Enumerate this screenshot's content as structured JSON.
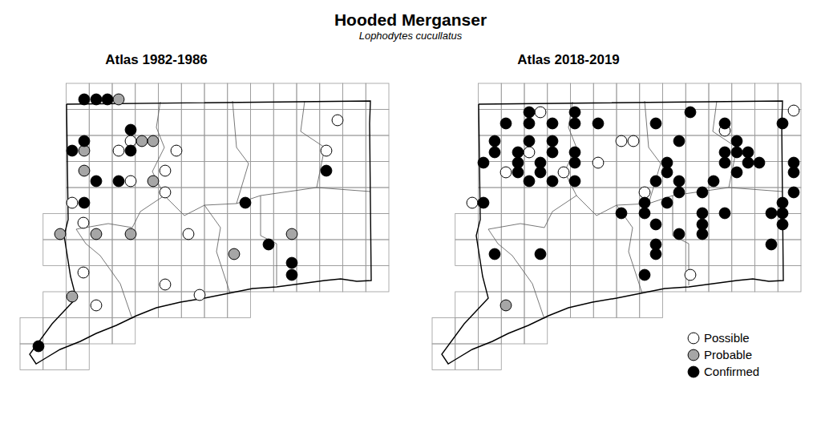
{
  "chart_data": {
    "type": "scatter",
    "title": "Hooded Merganser",
    "subtitle": "Lophodytes cucullatus",
    "xlim": [
      0,
      460
    ],
    "ylim": [
      0,
      390
    ],
    "tick_labels": false,
    "panels": [
      {
        "title": "Atlas 1982-1986",
        "series": [
          {
            "name": "Possible",
            "color": "#ffffff",
            "marker": "circle",
            "x": [
              138,
              123,
              195,
              181,
              138,
              181,
              65,
              79,
              210,
              79,
              95,
              181,
              224,
              396,
              382
            ],
            "y": [
              72,
              84,
              84,
              109,
              122,
              136,
              149,
              174,
              188,
              236,
              277,
              251,
              264,
              46,
              84
            ]
          },
          {
            "name": "Probable",
            "color": "#a6a6a6",
            "marker": "circle",
            "x": [
              123,
              152,
              166,
              80,
              80,
              166,
              50,
              95,
              138,
              65,
              339,
              267
            ],
            "y": [
              20,
              72,
              72,
              84,
              109,
              122,
              188,
              188,
              188,
              266,
              188,
              213
            ]
          },
          {
            "name": "Confirmed",
            "color": "#000000",
            "marker": "circle",
            "x": [
              80,
              95,
              109,
              138,
              80,
              65,
              138,
              95,
              123,
              80,
              23,
              281,
              382,
              310,
              339,
              339
            ],
            "y": [
              20,
              20,
              20,
              58,
              72,
              84,
              84,
              122,
              122,
              149,
              328,
              149,
              109,
              201,
              224,
              239
            ]
          }
        ]
      },
      {
        "title": "Atlas 2018-2019",
        "legend": "lower right",
        "series": [
          {
            "name": "Possible",
            "color": "#ffffff",
            "marker": "circle",
            "x": [
              135,
              451,
              365,
              236,
              251,
              121,
              207,
              92,
              164,
              265,
              50,
              322
            ],
            "y": [
              36,
              34,
              59,
              72,
              72,
              86,
              99,
              111,
              111,
              136,
              149,
              239
            ]
          },
          {
            "name": "Probable",
            "color": "#a6a6a6",
            "marker": "circle",
            "x": [
              92
            ],
            "y": [
              277
            ]
          },
          {
            "name": "Confirmed",
            "color": "#000000",
            "marker": "circle",
            "x": [
              121,
              178,
              322,
              92,
              121,
              150,
              178,
              207,
              279,
              365,
              437,
              78,
              121,
              150,
              380,
              308,
              78,
              107,
              150,
              178,
              365,
              380,
              394,
              64,
              107,
              135,
              178,
              293,
              365,
              394,
              408,
              451,
              107,
              135,
              293,
              380,
              451,
              121,
              150,
              178,
              279,
              308,
              351,
              308,
              337,
              451,
              64,
              265,
              293,
              437,
              236,
              265,
              337,
              365,
              423,
              437,
              279,
              337,
              437,
              308,
              337,
              279,
              423,
              78,
              135,
              279,
              265
            ],
            "y": [
              36,
              36,
              36,
              50,
              50,
              50,
              50,
              50,
              50,
              50,
              50,
              72,
              72,
              72,
              72,
              72,
              86,
              86,
              86,
              86,
              86,
              86,
              86,
              99,
              99,
              99,
              99,
              99,
              99,
              99,
              99,
              99,
              111,
              111,
              111,
              111,
              111,
              122,
              122,
              122,
              122,
              122,
              122,
              136,
              136,
              136,
              149,
              149,
              149,
              149,
              162,
              162,
              162,
              162,
              162,
              162,
              176,
              176,
              176,
              188,
              188,
              201,
              201,
              213,
              213,
              213,
              239
            ]
          }
        ]
      }
    ]
  }
}
